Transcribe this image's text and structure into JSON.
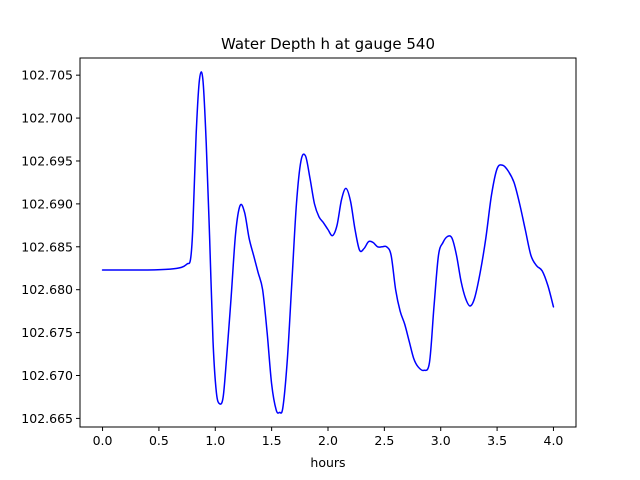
{
  "chart_data": {
    "type": "line",
    "title": "Water Depth h at gauge 540",
    "xlabel": "hours",
    "ylabel": "",
    "xlim": [
      -0.2,
      4.2
    ],
    "ylim": [
      102.664,
      102.707
    ],
    "grid": false,
    "legend": "none",
    "xticks": [
      0.0,
      0.5,
      1.0,
      1.5,
      2.0,
      2.5,
      3.0,
      3.5,
      4.0
    ],
    "xtick_labels": [
      "0.0",
      "0.5",
      "1.0",
      "1.5",
      "2.0",
      "2.5",
      "3.0",
      "3.5",
      "4.0"
    ],
    "yticks": [
      102.665,
      102.67,
      102.675,
      102.68,
      102.685,
      102.69,
      102.695,
      102.7,
      102.705
    ],
    "ytick_labels": [
      "102.665",
      "102.670",
      "102.675",
      "102.680",
      "102.685",
      "102.690",
      "102.695",
      "102.700",
      "102.705"
    ],
    "series": [
      {
        "color": "#0000ff",
        "x": [
          0.0,
          0.2,
          0.4,
          0.6,
          0.7,
          0.75,
          0.78,
          0.8,
          0.83,
          0.86,
          0.89,
          0.92,
          0.95,
          0.98,
          1.01,
          1.04,
          1.07,
          1.1,
          1.14,
          1.18,
          1.22,
          1.26,
          1.3,
          1.34,
          1.38,
          1.42,
          1.46,
          1.5,
          1.54,
          1.57,
          1.6,
          1.64,
          1.68,
          1.72,
          1.76,
          1.8,
          1.84,
          1.88,
          1.92,
          1.96,
          2.0,
          2.04,
          2.08,
          2.12,
          2.16,
          2.2,
          2.24,
          2.28,
          2.32,
          2.36,
          2.4,
          2.44,
          2.48,
          2.52,
          2.56,
          2.6,
          2.64,
          2.68,
          2.72,
          2.76,
          2.8,
          2.85,
          2.9,
          2.94,
          2.98,
          3.02,
          3.06,
          3.1,
          3.14,
          3.18,
          3.22,
          3.26,
          3.3,
          3.35,
          3.4,
          3.45,
          3.5,
          3.55,
          3.6,
          3.65,
          3.7,
          3.75,
          3.8,
          3.85,
          3.9,
          3.95,
          4.0
        ],
        "y": [
          102.6823,
          102.6823,
          102.6823,
          102.6824,
          102.6826,
          102.683,
          102.6835,
          102.687,
          102.698,
          102.7045,
          102.7045,
          102.697,
          102.686,
          102.674,
          102.668,
          102.6667,
          102.6675,
          102.672,
          102.679,
          102.6865,
          102.6898,
          102.689,
          102.686,
          102.684,
          102.682,
          102.68,
          102.675,
          102.669,
          102.666,
          102.6657,
          102.6663,
          102.672,
          102.681,
          102.69,
          102.695,
          102.6956,
          102.693,
          102.69,
          102.6885,
          102.6878,
          102.687,
          102.6863,
          102.6875,
          102.6905,
          102.6918,
          102.6903,
          102.687,
          102.6846,
          102.6848,
          102.6856,
          102.6855,
          102.685,
          102.685,
          102.685,
          102.684,
          102.68,
          102.6775,
          102.676,
          102.674,
          102.672,
          102.671,
          102.6706,
          102.6715,
          102.678,
          102.684,
          102.6855,
          102.6862,
          102.686,
          102.684,
          102.681,
          102.679,
          102.6781,
          102.679,
          102.682,
          102.686,
          102.691,
          102.6941,
          102.6945,
          102.6938,
          102.6925,
          102.69,
          102.687,
          102.684,
          102.6828,
          102.6822,
          102.6805,
          102.678
        ]
      }
    ]
  }
}
